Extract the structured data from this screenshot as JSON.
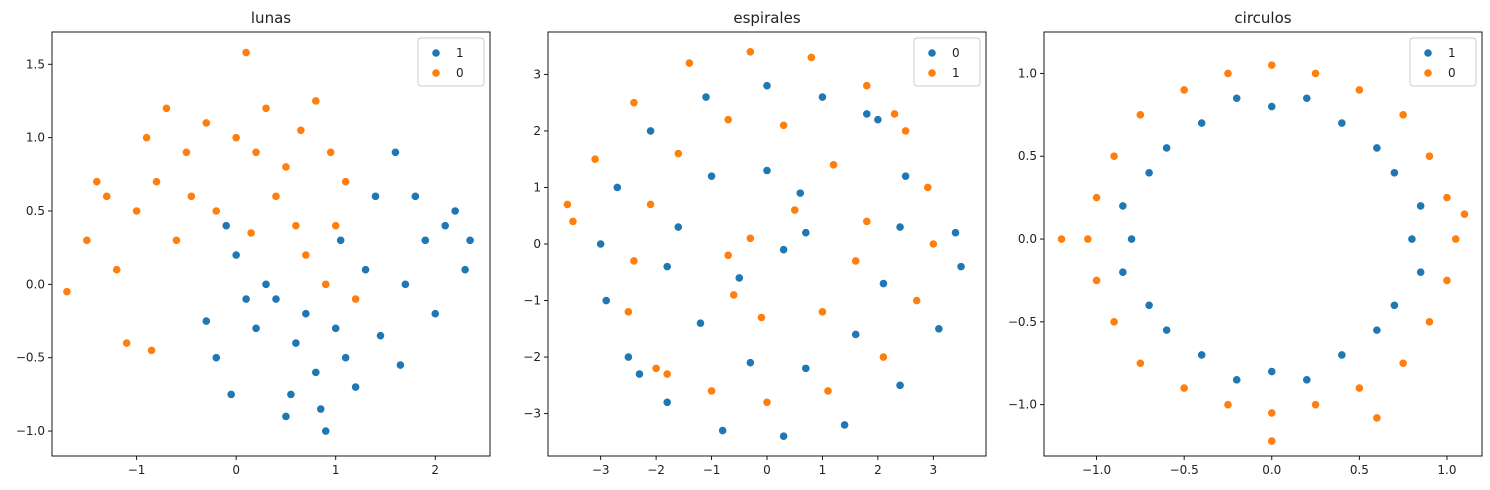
{
  "colors": {
    "series_a": "#1f77b4",
    "series_b": "#ff7f0e"
  },
  "chart_data": [
    {
      "type": "scatter",
      "title": "lunas",
      "xlabel": "",
      "ylabel": "",
      "xlim": [
        -1.85,
        2.55
      ],
      "ylim": [
        -1.17,
        1.72
      ],
      "xticks": [
        -1,
        0,
        1,
        2
      ],
      "yticks": [
        -1.0,
        -0.5,
        0.0,
        0.5,
        1.0,
        1.5
      ],
      "tick_labels_x": [
        "−1",
        "0",
        "1",
        "2"
      ],
      "tick_labels_y": [
        "−1.0",
        "−0.5",
        "0.0",
        "0.5",
        "1.0",
        "1.5"
      ],
      "grid": false,
      "legend_placement": "top-right",
      "series": [
        {
          "name": "1",
          "color": "#1f77b4",
          "points": [
            [
              0.5,
              -0.9
            ],
            [
              1.0,
              -0.3
            ],
            [
              -0.3,
              -0.25
            ],
            [
              2.2,
              0.5
            ],
            [
              1.7,
              0.0
            ],
            [
              0.8,
              -0.6
            ],
            [
              0.2,
              -0.3
            ],
            [
              1.4,
              0.6
            ],
            [
              0.0,
              0.2
            ],
            [
              0.6,
              -0.4
            ],
            [
              1.9,
              0.3
            ],
            [
              1.2,
              -0.7
            ],
            [
              -0.1,
              0.4
            ],
            [
              2.3,
              0.1
            ],
            [
              0.9,
              -1.0
            ],
            [
              1.6,
              0.9
            ],
            [
              0.4,
              -0.1
            ],
            [
              1.3,
              0.1
            ],
            [
              -0.2,
              -0.5
            ],
            [
              2.0,
              -0.2
            ],
            [
              0.7,
              -0.2
            ],
            [
              1.1,
              -0.5
            ],
            [
              0.3,
              0.0
            ],
            [
              1.8,
              0.6
            ],
            [
              0.55,
              -0.75
            ],
            [
              1.45,
              -0.35
            ],
            [
              2.1,
              0.4
            ],
            [
              0.1,
              -0.1
            ],
            [
              1.05,
              0.3
            ],
            [
              0.85,
              -0.85
            ],
            [
              -0.05,
              -0.75
            ],
            [
              2.35,
              0.3
            ],
            [
              1.65,
              -0.55
            ]
          ]
        },
        {
          "name": "0",
          "color": "#ff7f0e",
          "points": [
            [
              -1.0,
              0.5
            ],
            [
              0.0,
              1.0
            ],
            [
              0.5,
              0.8
            ],
            [
              -0.5,
              0.9
            ],
            [
              1.0,
              0.4
            ],
            [
              -1.7,
              -0.05
            ],
            [
              -1.2,
              0.1
            ],
            [
              0.3,
              1.2
            ],
            [
              -0.8,
              0.7
            ],
            [
              0.9,
              0.0
            ],
            [
              -0.3,
              1.1
            ],
            [
              0.6,
              0.4
            ],
            [
              -1.5,
              0.3
            ],
            [
              0.1,
              1.58
            ],
            [
              1.1,
              0.7
            ],
            [
              -0.6,
              0.3
            ],
            [
              0.4,
              0.6
            ],
            [
              -1.1,
              -0.4
            ],
            [
              0.2,
              0.9
            ],
            [
              -0.9,
              1.0
            ],
            [
              0.8,
              1.25
            ],
            [
              -1.3,
              0.6
            ],
            [
              0.7,
              0.2
            ],
            [
              -0.2,
              0.5
            ],
            [
              1.2,
              -0.1
            ],
            [
              -0.7,
              1.2
            ],
            [
              0.15,
              0.35
            ],
            [
              -1.4,
              0.7
            ],
            [
              0.95,
              0.9
            ],
            [
              -0.45,
              0.6
            ],
            [
              0.65,
              1.05
            ],
            [
              -0.85,
              -0.45
            ]
          ]
        }
      ]
    },
    {
      "type": "scatter",
      "title": "espirales",
      "xlabel": "",
      "ylabel": "",
      "xlim": [
        -3.95,
        3.95
      ],
      "ylim": [
        -3.75,
        3.75
      ],
      "xticks": [
        -3,
        -2,
        -1,
        0,
        1,
        2,
        3
      ],
      "yticks": [
        -3,
        -2,
        -1,
        0,
        1,
        2,
        3
      ],
      "tick_labels_x": [
        "−3",
        "−2",
        "−1",
        "0",
        "1",
        "2",
        "3"
      ],
      "tick_labels_y": [
        "−3",
        "−2",
        "−1",
        "0",
        "1",
        "2",
        "3"
      ],
      "grid": false,
      "legend_placement": "top-right",
      "series": [
        {
          "name": "0",
          "color": "#1f77b4",
          "points": [
            [
              0.0,
              1.3
            ],
            [
              0.6,
              0.9
            ],
            [
              0.7,
              0.2
            ],
            [
              0.3,
              -0.1
            ],
            [
              -1.0,
              1.2
            ],
            [
              -1.6,
              0.3
            ],
            [
              -1.8,
              -0.4
            ],
            [
              -1.2,
              -1.4
            ],
            [
              -0.3,
              -2.1
            ],
            [
              0.7,
              -2.2
            ],
            [
              1.6,
              -1.6
            ],
            [
              2.1,
              -0.7
            ],
            [
              2.4,
              0.3
            ],
            [
              2.5,
              1.2
            ],
            [
              2.0,
              2.2
            ],
            [
              1.0,
              2.6
            ],
            [
              0.0,
              2.8
            ],
            [
              -1.1,
              2.6
            ],
            [
              -2.1,
              2.0
            ],
            [
              -2.7,
              1.0
            ],
            [
              -3.0,
              0.0
            ],
            [
              -2.9,
              -1.0
            ],
            [
              -2.5,
              -2.0
            ],
            [
              -1.8,
              -2.8
            ],
            [
              -0.8,
              -3.3
            ],
            [
              0.3,
              -3.4
            ],
            [
              1.4,
              -3.2
            ],
            [
              2.4,
              -2.5
            ],
            [
              3.1,
              -1.5
            ],
            [
              3.5,
              -0.4
            ],
            [
              3.4,
              0.2
            ],
            [
              -2.3,
              -2.3
            ],
            [
              1.8,
              2.3
            ],
            [
              -0.5,
              -0.6
            ]
          ]
        },
        {
          "name": "1",
          "color": "#ff7f0e",
          "points": [
            [
              -0.1,
              -1.3
            ],
            [
              -0.6,
              -0.9
            ],
            [
              -0.7,
              -0.2
            ],
            [
              -0.3,
              0.1
            ],
            [
              1.0,
              -1.2
            ],
            [
              1.6,
              -0.3
            ],
            [
              1.8,
              0.4
            ],
            [
              1.2,
              1.4
            ],
            [
              0.3,
              2.1
            ],
            [
              -0.7,
              2.2
            ],
            [
              -1.6,
              1.6
            ],
            [
              -2.1,
              0.7
            ],
            [
              -2.4,
              -0.3
            ],
            [
              -2.5,
              -1.2
            ],
            [
              -2.0,
              -2.2
            ],
            [
              -1.0,
              -2.6
            ],
            [
              0.0,
              -2.8
            ],
            [
              1.1,
              -2.6
            ],
            [
              2.1,
              -2.0
            ],
            [
              2.7,
              -1.0
            ],
            [
              3.0,
              0.0
            ],
            [
              2.9,
              1.0
            ],
            [
              2.5,
              2.0
            ],
            [
              1.8,
              2.8
            ],
            [
              0.8,
              3.3
            ],
            [
              -0.3,
              3.4
            ],
            [
              -1.4,
              3.2
            ],
            [
              -2.4,
              2.5
            ],
            [
              -3.1,
              1.5
            ],
            [
              -3.5,
              0.4
            ],
            [
              -3.6,
              0.7
            ],
            [
              2.3,
              2.3
            ],
            [
              -1.8,
              -2.3
            ],
            [
              0.5,
              0.6
            ]
          ]
        }
      ]
    },
    {
      "type": "scatter",
      "title": "circulos",
      "xlabel": "",
      "ylabel": "",
      "xlim": [
        -1.3,
        1.2
      ],
      "ylim": [
        -1.31,
        1.25
      ],
      "xticks": [
        -1.0,
        -0.5,
        0.0,
        0.5,
        1.0
      ],
      "yticks": [
        -1.0,
        -0.5,
        0.0,
        0.5,
        1.0
      ],
      "tick_labels_x": [
        "−1.0",
        "−0.5",
        "0.0",
        "0.5",
        "1.0"
      ],
      "tick_labels_y": [
        "−1.0",
        "−0.5",
        "0.0",
        "0.5",
        "1.0"
      ],
      "grid": false,
      "legend_placement": "top-right",
      "series": [
        {
          "name": "1",
          "color": "#1f77b4",
          "points": [
            [
              0.0,
              0.8
            ],
            [
              0.4,
              0.7
            ],
            [
              0.7,
              0.4
            ],
            [
              0.8,
              0.0
            ],
            [
              0.7,
              -0.4
            ],
            [
              0.4,
              -0.7
            ],
            [
              0.0,
              -0.8
            ],
            [
              -0.4,
              -0.7
            ],
            [
              -0.7,
              -0.4
            ],
            [
              -0.8,
              0.0
            ],
            [
              -0.7,
              0.4
            ],
            [
              -0.4,
              0.7
            ],
            [
              0.2,
              0.85
            ],
            [
              0.6,
              0.55
            ],
            [
              0.85,
              0.2
            ],
            [
              0.85,
              -0.2
            ],
            [
              0.6,
              -0.55
            ],
            [
              0.2,
              -0.85
            ],
            [
              -0.2,
              -0.85
            ],
            [
              -0.6,
              -0.55
            ],
            [
              -0.85,
              -0.2
            ],
            [
              -0.85,
              0.2
            ],
            [
              -0.6,
              0.55
            ],
            [
              -0.2,
              0.85
            ]
          ]
        },
        {
          "name": "0",
          "color": "#ff7f0e",
          "points": [
            [
              0.0,
              1.05
            ],
            [
              0.5,
              0.9
            ],
            [
              0.9,
              0.5
            ],
            [
              1.05,
              0.0
            ],
            [
              0.9,
              -0.5
            ],
            [
              0.5,
              -0.9
            ],
            [
              0.0,
              -1.05
            ],
            [
              -0.5,
              -0.9
            ],
            [
              -0.9,
              -0.5
            ],
            [
              -1.05,
              0.0
            ],
            [
              -0.9,
              0.5
            ],
            [
              -0.5,
              0.9
            ],
            [
              0.25,
              1.0
            ],
            [
              0.75,
              0.75
            ],
            [
              1.0,
              0.25
            ],
            [
              1.0,
              -0.25
            ],
            [
              0.75,
              -0.75
            ],
            [
              0.25,
              -1.0
            ],
            [
              -0.25,
              -1.0
            ],
            [
              -0.75,
              -0.75
            ],
            [
              -1.0,
              -0.25
            ],
            [
              -1.0,
              0.25
            ],
            [
              -0.75,
              0.75
            ],
            [
              -0.25,
              1.0
            ],
            [
              0.0,
              -1.22
            ],
            [
              1.1,
              0.15
            ],
            [
              -1.2,
              0.0
            ],
            [
              0.6,
              -1.08
            ]
          ]
        }
      ]
    }
  ]
}
